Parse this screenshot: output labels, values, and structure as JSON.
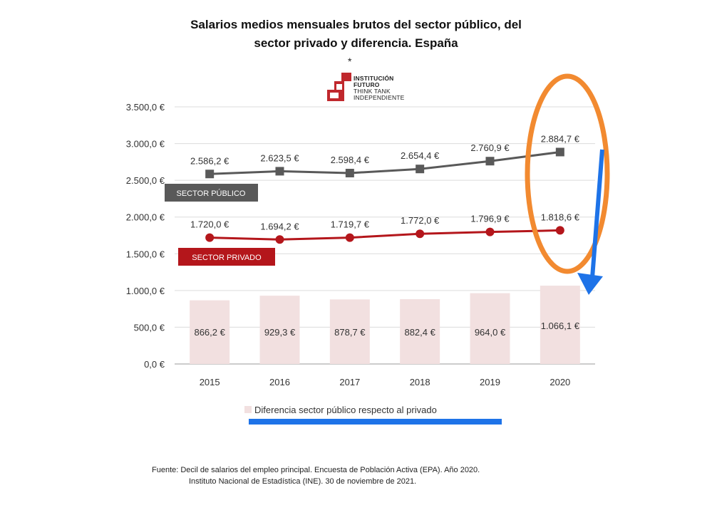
{
  "title_line1": "Salarios medios mensuales brutos del sector público, del",
  "title_line2": "sector privado  y diferencia. España",
  "asterisk": "*",
  "logo": {
    "line1": "INSTITUCIÓN",
    "line2": "FUTURO",
    "line3": "THINK TANK",
    "line4": "INDEPENDIENTE",
    "color": "#c0282d"
  },
  "footer_line1": "Fuente: Decil de salarios del empleo principal. Encuesta de Población Activa (EPA). Año 2020.",
  "footer_line2": "Instituto Nacional de Estadística (INE). 30 de noviembre de 2021.",
  "chart_data": {
    "type": "bar+line",
    "categories": [
      "2015",
      "2016",
      "2017",
      "2018",
      "2019",
      "2020"
    ],
    "ylim": [
      0,
      3500
    ],
    "yticks": [
      0,
      500,
      1000,
      1500,
      2000,
      2500,
      3000,
      3500
    ],
    "ytick_labels": [
      "0,0 €",
      "500,0 €",
      "1.000,0 €",
      "1.500,0 €",
      "2.000,0 €",
      "2.500,0 €",
      "3.000,0 €",
      "3.500,0 €"
    ],
    "grid": true,
    "legend_position": "bottom",
    "series": [
      {
        "name": "SECTOR PÚBLICO",
        "kind": "line",
        "color": "#595959",
        "marker": "square",
        "values": [
          2586.2,
          2623.5,
          2598.4,
          2654.4,
          2760.9,
          2884.7
        ],
        "labels": [
          "2.586,2 €",
          "2.623,5 €",
          "2.598,4 €",
          "2.654,4 €",
          "2.760,9 €",
          "2.884,7 €"
        ]
      },
      {
        "name": "SECTOR PRIVADO",
        "kind": "line",
        "color": "#b4161b",
        "marker": "circle",
        "values": [
          1720.0,
          1694.2,
          1719.7,
          1772.0,
          1796.9,
          1818.6
        ],
        "labels": [
          "1.720,0 €",
          "1.694,2 €",
          "1.719,7 €",
          "1.772,0 €",
          "1.796,9 €",
          "1.818,6 €"
        ]
      },
      {
        "name": "Diferencia sector público respecto al privado",
        "kind": "bar",
        "color": "#f2e0e0",
        "values": [
          866.2,
          929.3,
          878.7,
          882.4,
          964.0,
          1066.1
        ],
        "labels": [
          "866,2 €",
          "929,3 €",
          "878,7 €",
          "882,4 €",
          "964,0 €",
          "1.066,1 €"
        ]
      }
    ],
    "annotations": {
      "highlight_ellipse_color": "#f28a30",
      "arrow_color": "#1e73e8",
      "underline_color": "#1e73e8"
    }
  }
}
